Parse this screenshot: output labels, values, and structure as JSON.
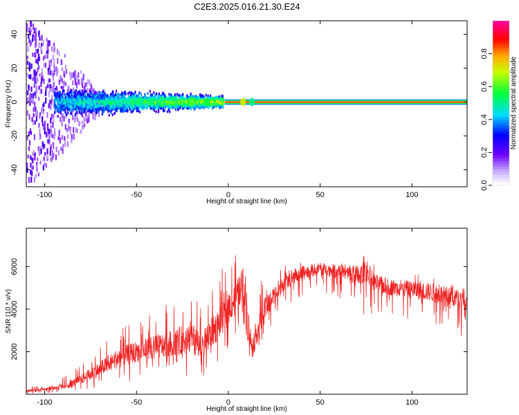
{
  "title": "C2E3.2025.016.21.30.E24",
  "chart_data": [
    {
      "type": "heatmap",
      "xlabel": "Height of straight line (km)",
      "ylabel": "Frequency (Hz)",
      "xlim": [
        -110,
        130
      ],
      "ylim": [
        -50,
        48
      ],
      "xticks": [
        -100,
        -50,
        0,
        50,
        100
      ],
      "xtick_labels": [
        "-100",
        "-50",
        "0",
        "50",
        "100"
      ],
      "yticks": [
        -40,
        -20,
        0,
        20,
        40
      ],
      "ytick_labels": [
        "-40",
        "-20",
        "0",
        "20",
        "40"
      ],
      "colorbar": {
        "label": "Normalized spectral amplitude",
        "range": [
          0,
          1
        ],
        "ticks": [
          0.0,
          0.2,
          0.4,
          0.6,
          0.8
        ],
        "tick_labels": [
          "0.0",
          "0.2",
          "0.4",
          "0.6",
          "0.8"
        ],
        "colormap": [
          "#ffffff",
          "#6b00ff",
          "#0000ff",
          "#00ffff",
          "#00ff00",
          "#ffff00",
          "#ff7f00",
          "#ff0000",
          "#ff00aa"
        ]
      },
      "band_center_hz": 0,
      "features": [
        {
          "x_range": [
            -110,
            -95
          ],
          "description_level": "scattered noise across full frequency range"
        },
        {
          "x_range": [
            -95,
            -5
          ],
          "frequency_spread_hz": [
            -10,
            10
          ],
          "peak_amplitude": 0.5
        },
        {
          "x_range": [
            0,
            130
          ],
          "frequency_spread_hz": [
            -1,
            1
          ],
          "peak_amplitude": 0.95
        }
      ],
      "grid": false
    },
    {
      "type": "line",
      "xlabel": "Height of straight line (km)",
      "ylabel": "SNR (10 * v/v)",
      "xlim": [
        -110,
        130
      ],
      "ylim": [
        0,
        7800
      ],
      "xticks": [
        -100,
        -50,
        0,
        50,
        100
      ],
      "xtick_labels": [
        "-100",
        "-50",
        "0",
        "50",
        "100"
      ],
      "yticks": [
        2000,
        4000,
        6000
      ],
      "ytick_labels": [
        "2000",
        "4000",
        "6000"
      ],
      "series": [
        {
          "color": "#ee2222",
          "x": [
            -110,
            -100,
            -90,
            -80,
            -70,
            -60,
            -50,
            -40,
            -30,
            -20,
            -15,
            -10,
            -5,
            0,
            5,
            8,
            10,
            13,
            15,
            20,
            25,
            30,
            40,
            50,
            60,
            70,
            75,
            80,
            90,
            100,
            110,
            120,
            130
          ],
          "y": [
            150,
            250,
            350,
            700,
            1200,
            1700,
            2000,
            2200,
            2400,
            2700,
            2000,
            2800,
            3300,
            4000,
            4700,
            5200,
            3500,
            2200,
            2800,
            4000,
            4600,
            5300,
            5700,
            5900,
            5800,
            5500,
            5800,
            5200,
            5000,
            4900,
            4800,
            4600,
            4400
          ],
          "max": [
            300,
            500,
            800,
            1400,
            2300,
            3100,
            3500,
            4100,
            4600,
            5000,
            4300,
            5100,
            5700,
            6300,
            6800,
            7800,
            6500,
            4600,
            5000,
            5600,
            5900,
            6100,
            6200,
            6300,
            6200,
            6300,
            6600,
            6100,
            5900,
            5800,
            5600,
            5500,
            5200
          ],
          "min": [
            0,
            50,
            100,
            150,
            300,
            450,
            600,
            800,
            1000,
            700,
            500,
            1100,
            1600,
            2200,
            2700,
            3300,
            1800,
            1500,
            1700,
            2600,
            3100,
            3700,
            4300,
            4700,
            4500,
            3200,
            3900,
            3600,
            3700,
            3400,
            3100,
            2900,
            2600
          ]
        }
      ],
      "grid": false
    }
  ]
}
